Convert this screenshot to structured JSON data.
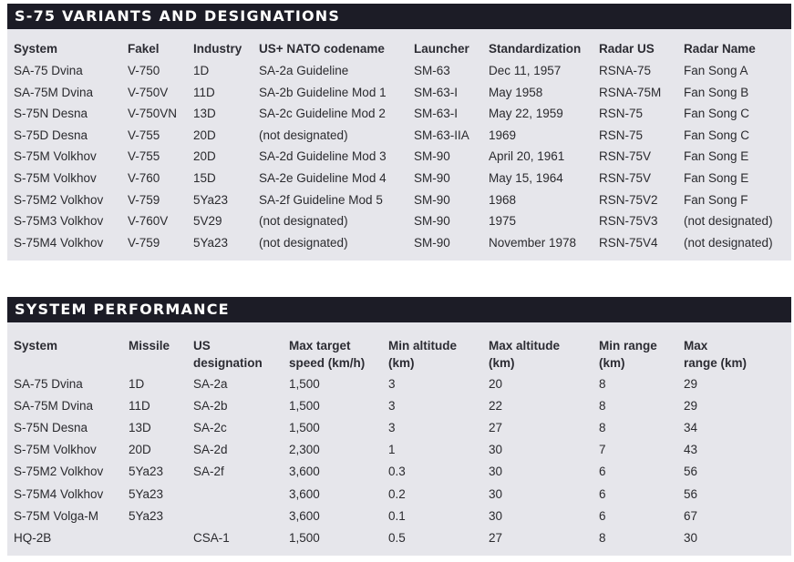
{
  "variants": {
    "title": "S-75 VARIANTS AND DESIGNATIONS",
    "headers": [
      "System",
      "Fakel",
      "Industry",
      "US+ NATO codename",
      "Launcher",
      "Standardization",
      "Radar US",
      "Radar Name"
    ],
    "rows": [
      [
        "SA-75 Dvina",
        "V-750",
        "1D",
        "SA-2a Guideline",
        "SM-63",
        "Dec 11, 1957",
        "RSNA-75",
        "Fan Song A"
      ],
      [
        "SA-75M Dvina",
        "V-750V",
        "11D",
        "SA-2b Guideline Mod 1",
        "SM-63-I",
        "May 1958",
        "RSNA-75M",
        "Fan Song B"
      ],
      [
        "S-75N Desna",
        "V-750VN",
        "13D",
        "SA-2c Guideline Mod 2",
        "SM-63-I",
        "May 22, 1959",
        "RSN-75",
        "Fan Song C"
      ],
      [
        "S-75D Desna",
        "V-755",
        "20D",
        "(not designated)",
        "SM-63-IIA",
        "1969",
        "RSN-75",
        "Fan Song C"
      ],
      [
        "S-75M Volkhov",
        "V-755",
        "20D",
        "SA-2d Guideline Mod 3",
        "SM-90",
        "April 20, 1961",
        "RSN-75V",
        "Fan Song E"
      ],
      [
        "S-75M Volkhov",
        "V-760",
        "15D",
        "SA-2e Guideline Mod 4",
        "SM-90",
        "May 15, 1964",
        "RSN-75V",
        "Fan Song E"
      ],
      [
        "S-75M2 Volkhov",
        "V-759",
        "5Ya23",
        "SA-2f Guideline Mod 5",
        "SM-90",
        "1968",
        "RSN-75V2",
        "Fan Song F"
      ],
      [
        "S-75M3 Volkhov",
        "V-760V",
        "5V29",
        "(not designated)",
        "SM-90",
        "1975",
        "RSN-75V3",
        "(not designated)"
      ],
      [
        "S-75M4 Volkhov",
        "V-759",
        "5Ya23",
        "(not designated)",
        "SM-90",
        "November 1978",
        "RSN-75V4",
        "(not designated)"
      ]
    ]
  },
  "performance": {
    "title": "SYSTEM PERFORMANCE",
    "headers": [
      [
        "System",
        ""
      ],
      [
        "Missile",
        ""
      ],
      [
        "US",
        "designation"
      ],
      [
        "Max target",
        "speed (km/h)"
      ],
      [
        "Min altitude",
        "(km)"
      ],
      [
        "Max altitude",
        "(km)"
      ],
      [
        "Min range",
        "(km)"
      ],
      [
        "Max",
        "range (km)"
      ]
    ],
    "rows": [
      [
        "SA-75 Dvina",
        "1D",
        "SA-2a",
        "1,500",
        "3",
        "20",
        "8",
        "29"
      ],
      [
        "SA-75M Dvina",
        "11D",
        "SA-2b",
        "1,500",
        "3",
        "22",
        "8",
        "29"
      ],
      [
        "S-75N Desna",
        "13D",
        "SA-2c",
        "1,500",
        "3",
        "27",
        "8",
        "34"
      ],
      [
        "S-75M Volkhov",
        "20D",
        "SA-2d",
        "2,300",
        "1",
        "30",
        "7",
        "43"
      ],
      [
        "S-75M2 Volkhov",
        "5Ya23",
        "SA-2f",
        "3,600",
        "0.3",
        "30",
        "6",
        "56"
      ],
      [
        "S-75M4 Volkhov",
        "5Ya23",
        "",
        "3,600",
        "0.2",
        "30",
        "6",
        "56"
      ],
      [
        "S-75M Volga-M",
        "5Ya23",
        "",
        "3,600",
        "0.1",
        "30",
        "6",
        "67"
      ],
      [
        "HQ-2B",
        "",
        "CSA-1",
        "1,500",
        "0.5",
        "27",
        "8",
        "30"
      ]
    ]
  }
}
